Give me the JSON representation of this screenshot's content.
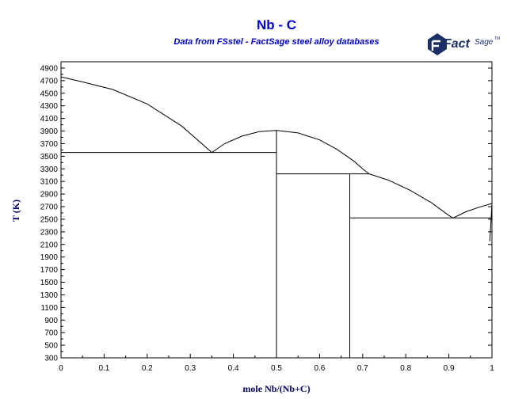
{
  "chart_data": {
    "type": "line",
    "title": "Nb - C",
    "subtitle": "Data from FSstel - FactSage steel alloy databases",
    "xlabel": "mole Nb/(Nb+C)",
    "ylabel": "T (K)",
    "xlim": [
      0,
      1
    ],
    "ylim": [
      300,
      5000
    ],
    "x_ticks": [
      "0",
      "0.1",
      "0.2",
      "0.3",
      "0.4",
      "0.5",
      "0.6",
      "0.7",
      "0.8",
      "0.9",
      "1"
    ],
    "y_ticks": [
      "300",
      "500",
      "700",
      "900",
      "1100",
      "1300",
      "1500",
      "1700",
      "1900",
      "2100",
      "2300",
      "2500",
      "2700",
      "2900",
      "3100",
      "3300",
      "3500",
      "3700",
      "3900",
      "4100",
      "4300",
      "4500",
      "4700",
      "4900"
    ],
    "grid": false,
    "logo": {
      "main": "Fact",
      "sub": "Sage",
      "mark": "TM"
    },
    "series": [
      {
        "x": [
          0,
          0.05,
          0.12,
          0.2,
          0.28,
          0.33,
          0.35
        ],
        "y": [
          4760,
          4680,
          4560,
          4330,
          3980,
          3680,
          3560
        ]
      },
      {
        "x": [
          0.35,
          0.38,
          0.42,
          0.46,
          0.5,
          0.55,
          0.6,
          0.64,
          0.68,
          0.7,
          0.715
        ],
        "y": [
          3560,
          3700,
          3820,
          3890,
          3910,
          3870,
          3760,
          3610,
          3420,
          3300,
          3220
        ]
      },
      {
        "x": [
          0.715,
          0.76,
          0.81,
          0.86,
          0.9,
          0.91
        ],
        "y": [
          3220,
          3120,
          2960,
          2760,
          2560,
          2520
        ]
      },
      {
        "x": [
          0.91,
          0.94,
          0.97,
          1.0
        ],
        "y": [
          2520,
          2620,
          2690,
          2750
        ]
      },
      {
        "x": [
          0.995,
          0.998,
          1.0
        ],
        "y": [
          2150,
          2500,
          2750
        ]
      },
      {
        "x": [
          0,
          0.5
        ],
        "y": [
          3560,
          3560
        ]
      },
      {
        "x": [
          0.5,
          0.715
        ],
        "y": [
          3220,
          3220
        ]
      },
      {
        "x": [
          0.67,
          1.0
        ],
        "y": [
          2520,
          2520
        ]
      },
      {
        "x": [
          0.5,
          0.5
        ],
        "y": [
          300,
          3910
        ]
      },
      {
        "x": [
          0.67,
          0.67
        ],
        "y": [
          300,
          3220
        ]
      }
    ]
  }
}
